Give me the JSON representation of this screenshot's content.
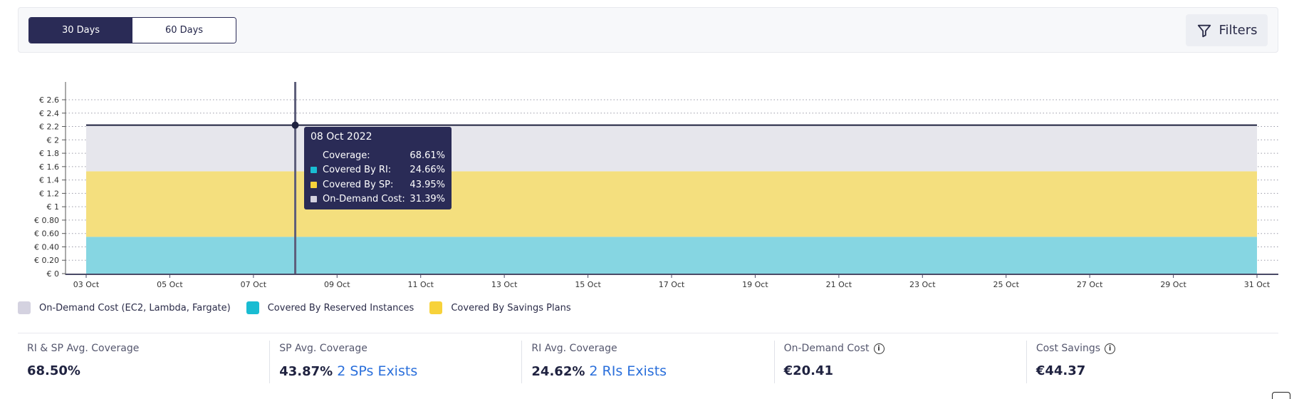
{
  "period_toggle": {
    "options": [
      "30 Days",
      "60 Days"
    ],
    "active": "30 Days"
  },
  "filters": {
    "label": "Filters",
    "icon": "funnel-icon"
  },
  "colors": {
    "on_demand": "#e6e6ec",
    "reserved_instances": "#86d6e2",
    "savings_plans": "#f4df7e",
    "legend_on_demand": "#d4d2e0",
    "legend_ri": "#19bcd2",
    "legend_sp": "#f7d23a",
    "accent": "#2a2b56",
    "link": "#2a6fdb"
  },
  "chart_data": {
    "type": "area",
    "stacked": true,
    "y_tick_labels": [
      "€ 0",
      "€ 0.20",
      "€ 0.40",
      "€ 0.60",
      "€ 0.80",
      "€ 1",
      "€ 1.2",
      "€ 1.4",
      "€ 1.6",
      "€ 1.8",
      "€ 2",
      "€ 2.2",
      "€ 2.4",
      "€ 2.6"
    ],
    "ylim": [
      0,
      2.6
    ],
    "x_tick_labels": [
      "03 Oct",
      "05 Oct",
      "07 Oct",
      "09 Oct",
      "11 Oct",
      "13 Oct",
      "15 Oct",
      "17 Oct",
      "19 Oct",
      "21 Oct",
      "23 Oct",
      "25 Oct",
      "27 Oct",
      "29 Oct",
      "31 Oct"
    ],
    "x_range_days": [
      3,
      31
    ],
    "series": [
      {
        "name": "Covered By Reserved Instances",
        "value": 0.55
      },
      {
        "name": "Covered By Savings Plans",
        "value": 0.98
      },
      {
        "name": "On-Demand Cost (EC2, Lambda, Fargate)",
        "value": 0.7
      }
    ],
    "total_line": 2.22,
    "grid": "horizontal dotted",
    "hover_day": 8
  },
  "tooltip": {
    "date": "08 Oct 2022",
    "rows": [
      {
        "label": "Coverage:",
        "value": "68.61%",
        "dot": ""
      },
      {
        "label": "Covered By RI:",
        "value": "24.66%",
        "dot": "#19bcd2"
      },
      {
        "label": "Covered By SP:",
        "value": "43.95%",
        "dot": "#f7d23a"
      },
      {
        "label": "On-Demand Cost:",
        "value": "31.39%",
        "dot": "#d4d2e0"
      }
    ]
  },
  "legend": [
    {
      "label": "On-Demand Cost (EC2, Lambda, Fargate)",
      "color": "#d4d2e0"
    },
    {
      "label": "Covered By Reserved Instances",
      "color": "#19bcd2"
    },
    {
      "label": "Covered By Savings Plans",
      "color": "#f7d23a"
    }
  ],
  "stats": [
    {
      "label": "RI & SP Avg. Coverage",
      "value": "68.50%",
      "link": "",
      "info": false
    },
    {
      "label": "SP Avg. Coverage",
      "value": "43.87%",
      "link": "2 SPs Exists",
      "info": false
    },
    {
      "label": "RI Avg. Coverage",
      "value": "24.62%",
      "link": "2 RIs Exists",
      "info": false
    },
    {
      "label": "On-Demand Cost",
      "value": "€20.41",
      "link": "",
      "info": true
    },
    {
      "label": "Cost Savings",
      "value": "€44.37",
      "link": "",
      "info": true
    }
  ]
}
